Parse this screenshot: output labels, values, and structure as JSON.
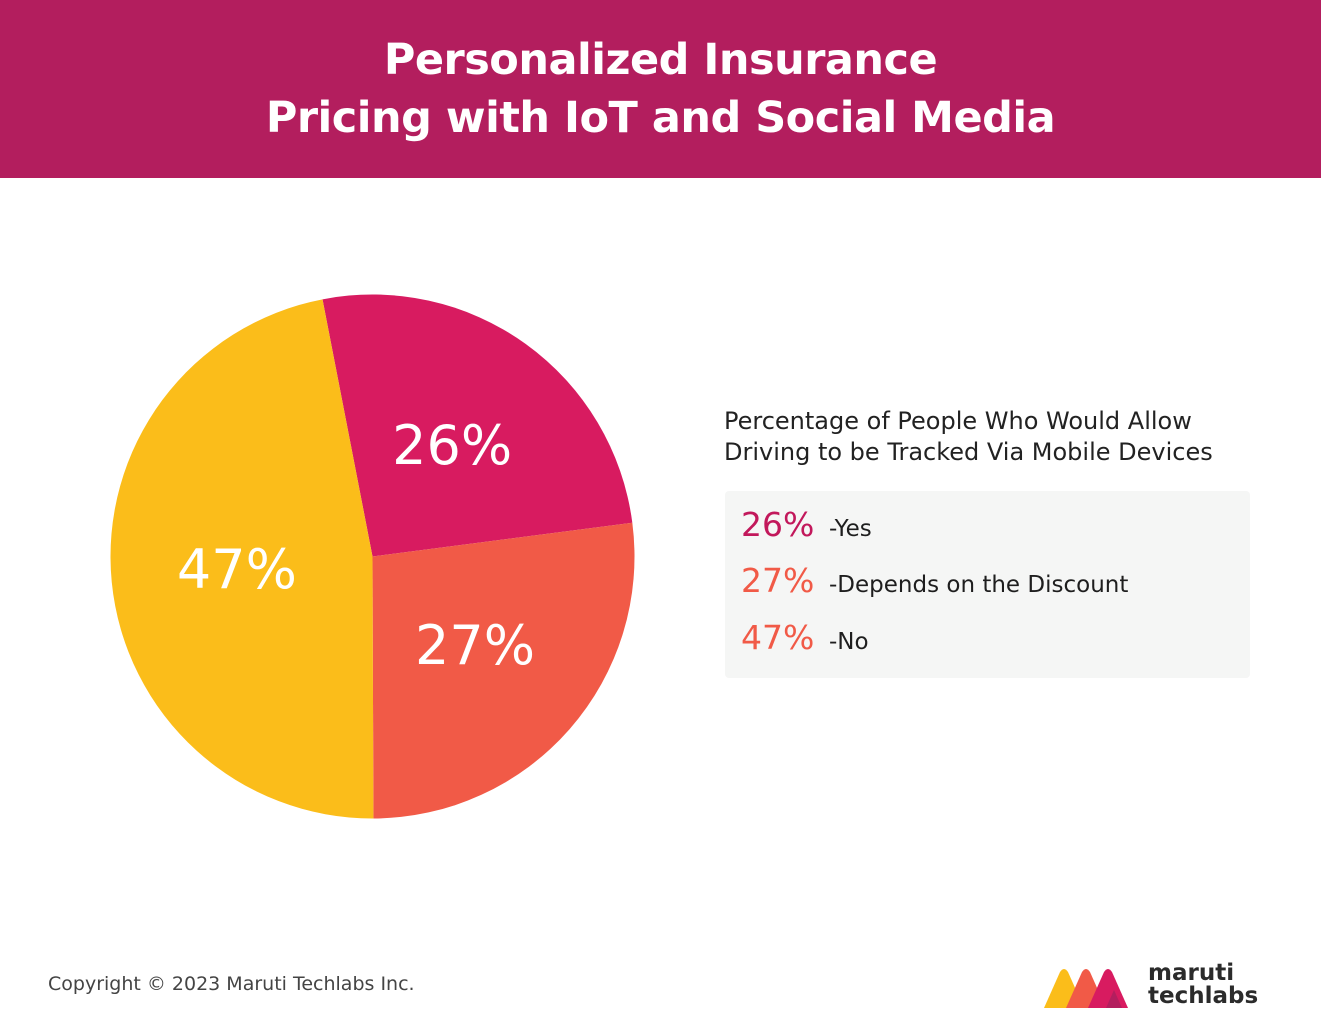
{
  "header": {
    "title_line1": "Personalized Insurance",
    "title_line2": "Pricing with IoT and Social Media",
    "background": "#b31e5e"
  },
  "chart_data": {
    "type": "pie",
    "title": "Percentage of People Who Would Allow Driving to be Tracked Via Mobile Devices",
    "title_lines": [
      "Percentage of People Who Would Allow",
      "Driving to be Tracked Via Mobile Devices"
    ],
    "slices": [
      {
        "label": "Yes",
        "value": 26,
        "display": "26%",
        "color": "#d81b60"
      },
      {
        "label": "Depends on the Discount",
        "value": 27,
        "display": "27%",
        "color": "#f15a47"
      },
      {
        "label": "No",
        "value": 47,
        "display": "47%",
        "color": "#fbbd1a"
      }
    ],
    "legend_position": "right"
  },
  "legend": {
    "items": [
      {
        "pct": "26%",
        "label": "-Yes",
        "color": "#c2185b"
      },
      {
        "pct": "27%",
        "label": "-Depends on the Discount",
        "color": "#f15a47"
      },
      {
        "pct": "47%",
        "label": "-No",
        "color": "#f15a47"
      }
    ]
  },
  "footer": {
    "copyright": "Copyright © 2023 Maruti Techlabs Inc.",
    "logo_line1": "maruti",
    "logo_line2": "techlabs"
  }
}
